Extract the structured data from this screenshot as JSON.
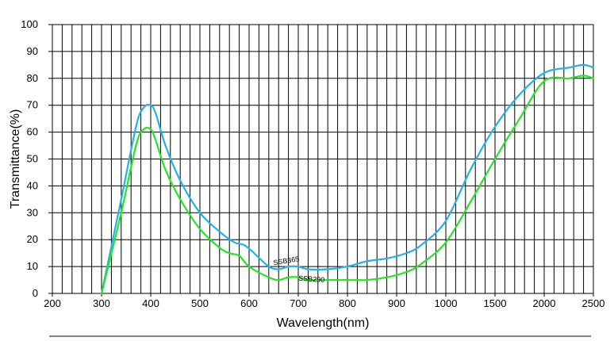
{
  "chart_data": {
    "type": "line",
    "xlabel": "Wavelength(nm)",
    "ylabel": "Transmittance(%)",
    "x_scale": "piecewise-categorical",
    "x_ticks": [
      "200",
      "300",
      "400",
      "500",
      "600",
      "700",
      "800",
      "900",
      "1000",
      "1500",
      "2000",
      "2500"
    ],
    "x_tick_values": [
      200,
      300,
      400,
      500,
      600,
      700,
      800,
      900,
      1000,
      1500,
      2000,
      2500
    ],
    "y_ticks": [
      "0",
      "10",
      "20",
      "30",
      "40",
      "50",
      "60",
      "70",
      "80",
      "90",
      "100"
    ],
    "ylim": [
      0,
      100
    ],
    "grid": true,
    "series": [
      {
        "name": "SSB365",
        "color": "#1EB4E6",
        "x": [
          300,
          340,
          370,
          385,
          400,
          410,
          430,
          460,
          500,
          540,
          570,
          590,
          610,
          640,
          660,
          680,
          700,
          720,
          760,
          800,
          840,
          880,
          920,
          950,
          1000,
          1250,
          1500,
          1750,
          2000,
          2250,
          2400,
          2500
        ],
        "y": [
          0,
          35,
          62,
          69,
          70,
          67,
          55,
          42,
          30,
          23,
          19,
          18,
          15,
          10,
          9,
          10,
          10,
          9,
          9,
          10,
          12,
          13,
          15,
          18,
          27,
          46,
          62,
          74,
          82,
          84,
          85,
          84
        ]
      },
      {
        "name": "SSB290",
        "color": "#22E622",
        "x": [
          300,
          340,
          370,
          385,
          400,
          410,
          430,
          460,
          500,
          540,
          560,
          580,
          600,
          640,
          660,
          680,
          700,
          720,
          760,
          800,
          840,
          880,
          920,
          950,
          1000,
          1250,
          1500,
          1750,
          2000,
          2250,
          2400,
          2500
        ],
        "y": [
          0,
          30,
          55,
          61,
          61,
          57,
          46,
          35,
          24,
          17,
          15,
          14,
          10,
          6,
          5,
          6,
          6,
          5,
          5,
          5,
          5,
          6,
          8,
          11,
          19,
          34,
          50,
          65,
          79,
          80,
          81,
          80
        ]
      }
    ]
  }
}
